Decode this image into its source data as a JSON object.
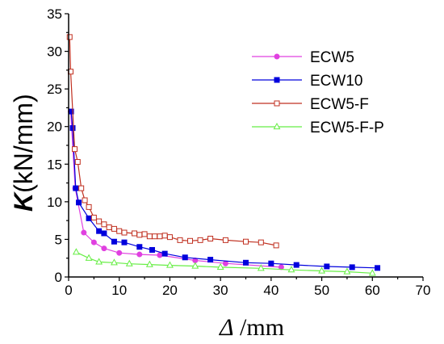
{
  "chart_data": {
    "type": "line",
    "xlabel": {
      "symbol": "Δ",
      "unit": " /mm"
    },
    "ylabel": {
      "symbol": "K",
      "unit": "(kN/mm)"
    },
    "xlim": [
      0,
      70
    ],
    "ylim": [
      0,
      35
    ],
    "xticks": [
      "0",
      "10",
      "20",
      "30",
      "40",
      "50",
      "60",
      "70"
    ],
    "yticks": [
      "0",
      "5",
      "10",
      "15",
      "20",
      "25",
      "30",
      "35"
    ],
    "grid": false,
    "legend_position": "top-right",
    "series": [
      {
        "name": "ECW5",
        "color": "#e040e0",
        "marker": "circle-filled",
        "points": [
          [
            0.4,
            22.0
          ],
          [
            1.3,
            11.8
          ],
          [
            3.0,
            5.9
          ],
          [
            5.0,
            4.6
          ],
          [
            7.0,
            3.8
          ],
          [
            10.0,
            3.2
          ],
          [
            14.0,
            3.0
          ],
          [
            18.0,
            2.9
          ],
          [
            25.0,
            2.2
          ],
          [
            31.0,
            1.8
          ],
          [
            42.0,
            1.3
          ]
        ]
      },
      {
        "name": "ECW10",
        "color": "#0000dd",
        "marker": "square-filled",
        "points": [
          [
            0.5,
            22.0
          ],
          [
            0.8,
            19.8
          ],
          [
            1.4,
            11.8
          ],
          [
            2.0,
            9.9
          ],
          [
            4.0,
            7.8
          ],
          [
            6.0,
            6.1
          ],
          [
            7.0,
            5.8
          ],
          [
            9.0,
            4.7
          ],
          [
            11.0,
            4.6
          ],
          [
            14.0,
            4.0
          ],
          [
            16.5,
            3.6
          ],
          [
            19.0,
            3.1
          ],
          [
            23.0,
            2.6
          ],
          [
            28.0,
            2.3
          ],
          [
            35.0,
            1.9
          ],
          [
            40.0,
            1.8
          ],
          [
            45.0,
            1.6
          ],
          [
            51.0,
            1.4
          ],
          [
            56.0,
            1.3
          ],
          [
            61.0,
            1.2
          ]
        ]
      },
      {
        "name": "ECW5-F",
        "color": "#c03020",
        "marker": "square-open",
        "points": [
          [
            0.2,
            31.9
          ],
          [
            0.4,
            27.3
          ],
          [
            1.2,
            17.0
          ],
          [
            1.8,
            15.3
          ],
          [
            2.5,
            11.8
          ],
          [
            3.2,
            10.2
          ],
          [
            4.0,
            9.3
          ],
          [
            5.0,
            7.9
          ],
          [
            6.0,
            7.4
          ],
          [
            7.0,
            7.0
          ],
          [
            8.0,
            6.6
          ],
          [
            9.0,
            6.4
          ],
          [
            10.0,
            6.1
          ],
          [
            11.0,
            5.9
          ],
          [
            13.0,
            5.8
          ],
          [
            14.0,
            5.6
          ],
          [
            15.0,
            5.7
          ],
          [
            16.0,
            5.4
          ],
          [
            17.0,
            5.4
          ],
          [
            18.0,
            5.4
          ],
          [
            19.0,
            5.5
          ],
          [
            20.0,
            5.3
          ],
          [
            22.0,
            4.9
          ],
          [
            24.0,
            4.8
          ],
          [
            26.0,
            4.9
          ],
          [
            28.0,
            5.1
          ],
          [
            31.0,
            4.9
          ],
          [
            35.0,
            4.7
          ],
          [
            38.0,
            4.6
          ],
          [
            41.0,
            4.2
          ]
        ]
      },
      {
        "name": "ECW5-F-P",
        "color": "#66ee44",
        "marker": "triangle-open",
        "points": [
          [
            1.5,
            3.3
          ],
          [
            4.0,
            2.5
          ],
          [
            6.0,
            2.0
          ],
          [
            9.0,
            1.9
          ],
          [
            12.0,
            1.75
          ],
          [
            16.0,
            1.65
          ],
          [
            20.0,
            1.55
          ],
          [
            25.0,
            1.45
          ],
          [
            30.0,
            1.3
          ],
          [
            38.0,
            1.15
          ],
          [
            44.0,
            0.95
          ],
          [
            50.0,
            0.8
          ],
          [
            55.0,
            0.7
          ],
          [
            60.0,
            0.5
          ]
        ]
      }
    ]
  }
}
